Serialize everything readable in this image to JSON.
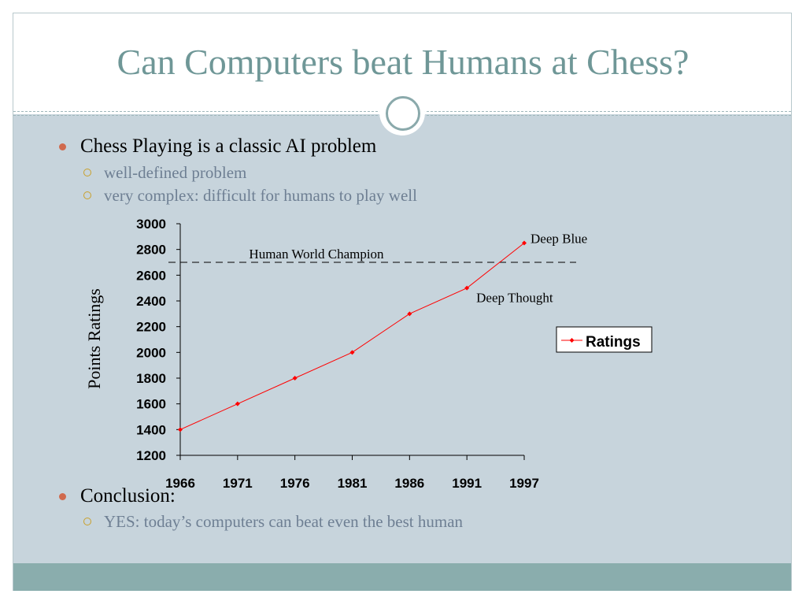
{
  "slide": {
    "title": "Can Computers beat Humans at Chess?",
    "colors": {
      "title": "#6f9797",
      "content_bg": "#c7d4dc",
      "footer_bg": "#8aadad",
      "bullet": "#d06a4e",
      "sub_bullet": "#c9a02b",
      "sub_text": "#6e7f93"
    }
  },
  "bullets": [
    {
      "text": "Chess Playing is a classic AI problem",
      "subs": [
        "well-defined problem",
        "very complex: difficult for humans to play well"
      ]
    },
    {
      "text": "Conclusion:",
      "subs": [
        "YES: today’s computers can beat even the best human"
      ]
    }
  ],
  "chart_data": {
    "type": "line",
    "title": "",
    "xlabel": "",
    "ylabel": "Points Ratings",
    "categories": [
      "1966",
      "1971",
      "1976",
      "1981",
      "1986",
      "1991",
      "1997"
    ],
    "series": [
      {
        "name": "Ratings",
        "values": [
          1400,
          1600,
          1800,
          2000,
          2300,
          2500,
          2850
        ],
        "color": "#ff0000"
      }
    ],
    "ylim": [
      1200,
      3000
    ],
    "yticks": [
      1200,
      1400,
      1600,
      1800,
      2000,
      2200,
      2400,
      2600,
      2800,
      3000
    ],
    "reference_line": {
      "label": "Human World Champion",
      "value": 2700
    },
    "annotations": [
      {
        "text": "Deep Blue",
        "category": "1997",
        "value": 2850
      },
      {
        "text": "Deep Thought",
        "category": "1991",
        "value": 2500
      }
    ],
    "legend": {
      "position": "right",
      "entries": [
        "Ratings"
      ]
    },
    "grid": false
  }
}
